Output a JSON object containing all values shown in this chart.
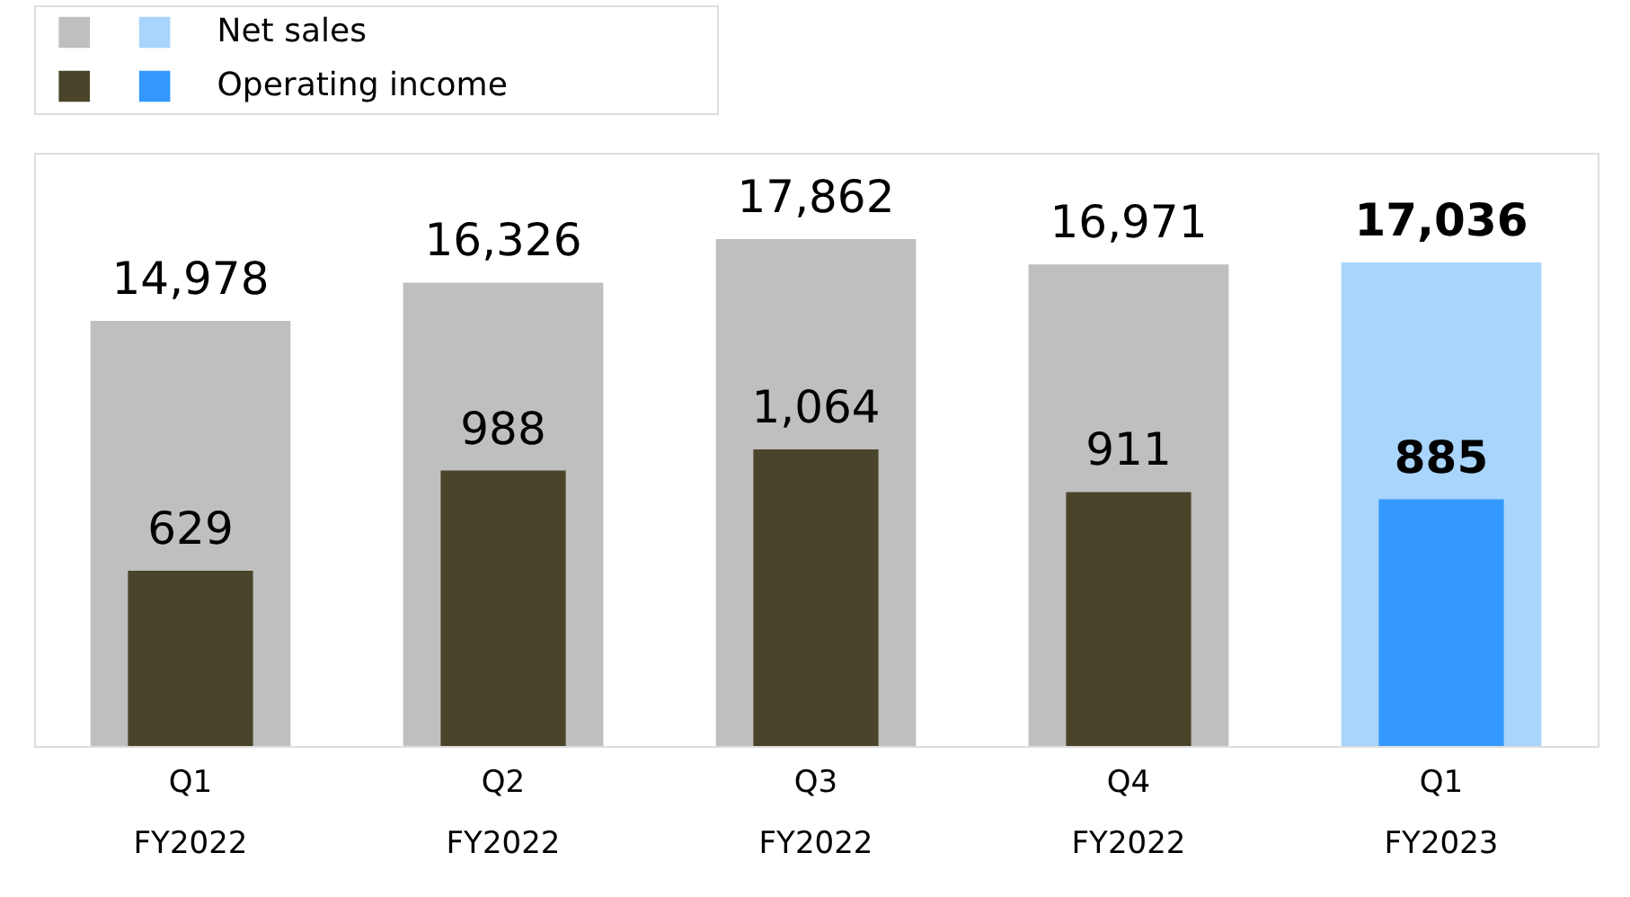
{
  "chart_data": {
    "type": "bar",
    "categories": [
      "Q1\nFY2022",
      "Q2\nFY2022",
      "Q3\nFY2022",
      "Q4\nFY2022",
      "Q1\nFY2023"
    ],
    "series": [
      {
        "name": "Net sales",
        "colors": [
          "#bfbfbf",
          "#bfbfbf",
          "#bfbfbf",
          "#bfbfbf",
          "#a9d4fb"
        ],
        "values": [
          14978,
          16326,
          17862,
          16971,
          17036
        ],
        "value_labels": [
          "14,978",
          "16,326",
          "17,862",
          "16,971",
          "17,036"
        ]
      },
      {
        "name": "Operating income",
        "colors": [
          "#4a452a",
          "#4a452a",
          "#4a452a",
          "#4a452a",
          "#3399ff"
        ],
        "values": [
          629,
          988,
          1064,
          911,
          885
        ],
        "value_labels": [
          "629",
          "988",
          "1,064",
          "911",
          "885"
        ],
        "axis": "y2"
      }
    ],
    "tick_labels": "x",
    "legend": "top left",
    "grid": false
  }
}
